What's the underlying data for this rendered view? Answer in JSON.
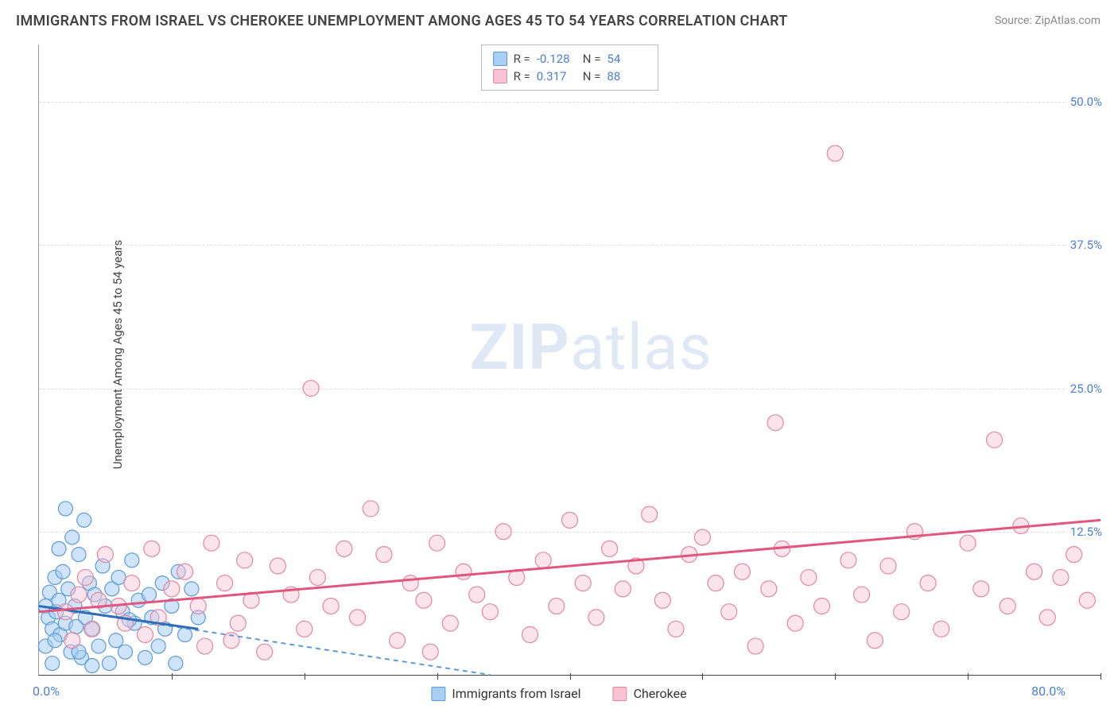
{
  "title": "IMMIGRANTS FROM ISRAEL VS CHEROKEE UNEMPLOYMENT AMONG AGES 45 TO 54 YEARS CORRELATION CHART",
  "source": "Source: ZipAtlas.com",
  "y_axis_label": "Unemployment Among Ages 45 to 54 years",
  "watermark_bold": "ZIP",
  "watermark_rest": "atlas",
  "chart": {
    "type": "scatter",
    "xlim": [
      0,
      80
    ],
    "ylim": [
      0,
      55
    ],
    "x_origin_label": "0.0%",
    "x_max_label": "80.0%",
    "x_ticks_at": [
      10,
      20,
      30,
      40,
      50,
      60,
      70,
      80
    ],
    "y_ticks": [
      {
        "value": 12.5,
        "label": "12.5%"
      },
      {
        "value": 25.0,
        "label": "25.0%"
      },
      {
        "value": 37.5,
        "label": "37.5%"
      },
      {
        "value": 50.0,
        "label": "50.0%"
      }
    ],
    "grid_color": "#dddddd",
    "background_color": "#ffffff",
    "series": [
      {
        "name": "Immigrants from Israel",
        "color_fill": "#a8cef2",
        "color_stroke": "#5a9bd8",
        "R": "-0.128",
        "N": "54",
        "marker_radius": 9,
        "fill_opacity": 0.55,
        "trend": {
          "x1": 0,
          "y1": 6.0,
          "x2": 34,
          "y2": 0,
          "dash": "6 5",
          "color": "#5a9bd8",
          "width": 2
        },
        "trend_solid": {
          "x1": 0,
          "y1": 6.0,
          "x2": 12,
          "y2": 4.0,
          "color": "#2f6db5",
          "width": 3
        },
        "points": [
          [
            0.5,
            6.0
          ],
          [
            0.7,
            5.0
          ],
          [
            0.8,
            7.2
          ],
          [
            1.0,
            4.0
          ],
          [
            1.2,
            8.5
          ],
          [
            1.3,
            5.5
          ],
          [
            1.5,
            6.5
          ],
          [
            1.6,
            3.5
          ],
          [
            1.8,
            9.0
          ],
          [
            2.0,
            4.5
          ],
          [
            2.2,
            7.5
          ],
          [
            2.4,
            2.0
          ],
          [
            2.5,
            12.0
          ],
          [
            2.7,
            6.0
          ],
          [
            3.0,
            10.5
          ],
          [
            3.2,
            1.5
          ],
          [
            3.4,
            13.5
          ],
          [
            3.5,
            5.0
          ],
          [
            3.8,
            8.0
          ],
          [
            4.0,
            4.0
          ],
          [
            4.2,
            7.0
          ],
          [
            4.5,
            2.5
          ],
          [
            4.8,
            9.5
          ],
          [
            5.0,
            6.0
          ],
          [
            5.3,
            1.0
          ],
          [
            5.5,
            7.5
          ],
          [
            5.8,
            3.0
          ],
          [
            6.0,
            8.5
          ],
          [
            6.3,
            5.5
          ],
          [
            6.5,
            2.0
          ],
          [
            7.0,
            10.0
          ],
          [
            7.2,
            4.5
          ],
          [
            7.5,
            6.5
          ],
          [
            8.0,
            1.5
          ],
          [
            8.3,
            7.0
          ],
          [
            8.5,
            5.0
          ],
          [
            9.0,
            2.5
          ],
          [
            9.3,
            8.0
          ],
          [
            9.5,
            4.0
          ],
          [
            10.0,
            6.0
          ],
          [
            10.3,
            1.0
          ],
          [
            10.5,
            9.0
          ],
          [
            11.0,
            3.5
          ],
          [
            11.5,
            7.5
          ],
          [
            12.0,
            5.0
          ],
          [
            2.0,
            14.5
          ],
          [
            1.5,
            11.0
          ],
          [
            3.0,
            2.0
          ],
          [
            1.0,
            1.0
          ],
          [
            0.5,
            2.5
          ],
          [
            1.2,
            3.0
          ],
          [
            2.8,
            4.2
          ],
          [
            4.0,
            0.8
          ],
          [
            6.8,
            4.8
          ]
        ]
      },
      {
        "name": "Cherokee",
        "color_fill": "#f7c3d5",
        "color_stroke": "#e4869f",
        "R": "0.317",
        "N": "88",
        "marker_radius": 10,
        "fill_opacity": 0.45,
        "trend": {
          "x1": 0,
          "y1": 5.5,
          "x2": 80,
          "y2": 13.5,
          "color": "#e0567e",
          "width": 3
        },
        "points": [
          [
            2,
            5.5
          ],
          [
            3,
            7.0
          ],
          [
            4,
            4.0
          ],
          [
            5,
            10.5
          ],
          [
            6,
            6.0
          ],
          [
            7,
            8.0
          ],
          [
            8,
            3.5
          ],
          [
            8.5,
            11.0
          ],
          [
            9,
            5.0
          ],
          [
            10,
            7.5
          ],
          [
            11,
            9.0
          ],
          [
            12,
            6.0
          ],
          [
            12.5,
            2.5
          ],
          [
            13,
            11.5
          ],
          [
            14,
            8.0
          ],
          [
            15,
            4.5
          ],
          [
            15.5,
            10.0
          ],
          [
            16,
            6.5
          ],
          [
            17,
            2.0
          ],
          [
            18,
            9.5
          ],
          [
            19,
            7.0
          ],
          [
            20,
            4.0
          ],
          [
            20.5,
            25.0
          ],
          [
            21,
            8.5
          ],
          [
            22,
            6.0
          ],
          [
            23,
            11.0
          ],
          [
            24,
            5.0
          ],
          [
            25,
            14.5
          ],
          [
            26,
            10.5
          ],
          [
            27,
            3.0
          ],
          [
            28,
            8.0
          ],
          [
            29,
            6.5
          ],
          [
            30,
            11.5
          ],
          [
            31,
            4.5
          ],
          [
            32,
            9.0
          ],
          [
            33,
            7.0
          ],
          [
            34,
            5.5
          ],
          [
            35,
            12.5
          ],
          [
            36,
            8.5
          ],
          [
            37,
            3.5
          ],
          [
            38,
            10.0
          ],
          [
            39,
            6.0
          ],
          [
            40,
            13.5
          ],
          [
            41,
            8.0
          ],
          [
            42,
            5.0
          ],
          [
            43,
            11.0
          ],
          [
            44,
            7.5
          ],
          [
            45,
            9.5
          ],
          [
            46,
            14.0
          ],
          [
            47,
            6.5
          ],
          [
            48,
            4.0
          ],
          [
            49,
            10.5
          ],
          [
            50,
            12.0
          ],
          [
            51,
            8.0
          ],
          [
            52,
            5.5
          ],
          [
            53,
            9.0
          ],
          [
            54,
            2.5
          ],
          [
            55,
            7.5
          ],
          [
            55.5,
            22.0
          ],
          [
            56,
            11.0
          ],
          [
            57,
            4.5
          ],
          [
            58,
            8.5
          ],
          [
            59,
            6.0
          ],
          [
            60,
            45.5
          ],
          [
            61,
            10.0
          ],
          [
            62,
            7.0
          ],
          [
            63,
            3.0
          ],
          [
            64,
            9.5
          ],
          [
            65,
            5.5
          ],
          [
            66,
            12.5
          ],
          [
            67,
            8.0
          ],
          [
            68,
            4.0
          ],
          [
            70,
            11.5
          ],
          [
            71,
            7.5
          ],
          [
            72,
            20.5
          ],
          [
            73,
            6.0
          ],
          [
            74,
            13.0
          ],
          [
            75,
            9.0
          ],
          [
            76,
            5.0
          ],
          [
            77,
            8.5
          ],
          [
            78,
            10.5
          ],
          [
            79,
            6.5
          ],
          [
            2.5,
            3.0
          ],
          [
            3.5,
            8.5
          ],
          [
            4.5,
            6.5
          ],
          [
            6.5,
            4.5
          ],
          [
            14.5,
            3.0
          ],
          [
            29.5,
            2.0
          ]
        ]
      }
    ]
  },
  "stats_legend": {
    "r_label": "R =",
    "n_label": "N ="
  }
}
